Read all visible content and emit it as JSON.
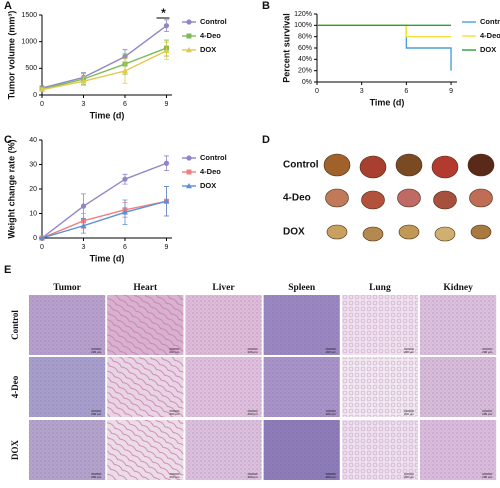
{
  "chart_data": [
    {
      "type": "line",
      "x_label": "Time (d)",
      "y_label": "Tumor volume (mm³)",
      "annotation": "*",
      "x": [
        0,
        3,
        6,
        9
      ],
      "xlim": [
        0,
        9.4
      ],
      "xticks": [
        0,
        3,
        6,
        9
      ],
      "ylim": [
        0,
        1500
      ],
      "yticks": [
        0,
        500,
        1000,
        1500
      ],
      "series": [
        {
          "name": "Control",
          "color": "#8e86c9",
          "marker": "circle",
          "values": [
            130,
            330,
            720,
            1300
          ],
          "errors": [
            40,
            90,
            130,
            110
          ]
        },
        {
          "name": "4-Deo",
          "color": "#7dbb5a",
          "marker": "square",
          "values": [
            110,
            300,
            580,
            880
          ],
          "errors": [
            30,
            100,
            190,
            150
          ]
        },
        {
          "name": "DOX",
          "color": "#e3c84a",
          "marker": "triangle",
          "values": [
            100,
            260,
            450,
            830
          ],
          "errors": [
            30,
            80,
            230,
            160
          ]
        }
      ]
    },
    {
      "type": "line",
      "x_label": "Time (d)",
      "y_label": "Percent survival",
      "xlim": [
        0,
        9.4
      ],
      "xticks": [
        0,
        3,
        6,
        9
      ],
      "ylim": [
        0,
        120
      ],
      "yticks": [
        {
          "value": 0,
          "label": "0%"
        },
        {
          "value": 20,
          "label": "20%"
        },
        {
          "value": 40,
          "label": "40%"
        },
        {
          "value": 60,
          "label": "60%"
        },
        {
          "value": 80,
          "label": "80%"
        },
        {
          "value": 100,
          "label": "100%"
        },
        {
          "value": 120,
          "label": "120%"
        }
      ],
      "series": [
        {
          "name": "Control",
          "color": "#4a9fd8",
          "x": [
            0,
            6,
            6,
            9,
            9
          ],
          "values": [
            100,
            100,
            60,
            60,
            20
          ]
        },
        {
          "name": "4-Deo",
          "color": "#f2e23a",
          "x": [
            0,
            6,
            6,
            9
          ],
          "values": [
            100,
            100,
            80,
            80
          ]
        },
        {
          "name": "DOX",
          "color": "#2e9e3a",
          "x": [
            0,
            9
          ],
          "values": [
            100,
            100
          ]
        }
      ]
    },
    {
      "type": "line",
      "x_label": "Time (d)",
      "y_label": "Weight change rate (%)",
      "x": [
        0,
        3,
        6,
        9
      ],
      "xlim": [
        0,
        9.4
      ],
      "xticks": [
        0,
        3,
        6,
        9
      ],
      "ylim": [
        0,
        40
      ],
      "yticks": [
        0,
        10,
        20,
        30,
        40
      ],
      "series": [
        {
          "name": "Control",
          "color": "#8e86c9",
          "marker": "circle",
          "values": [
            0,
            13,
            24,
            30.5
          ],
          "errors": [
            0,
            5,
            2,
            3
          ]
        },
        {
          "name": "4-Deo",
          "color": "#f08080",
          "marker": "square",
          "values": [
            0,
            7,
            11.5,
            15
          ],
          "errors": [
            0,
            3,
            3,
            6
          ]
        },
        {
          "name": "DOX",
          "color": "#5b8fd6",
          "marker": "triangle",
          "values": [
            0,
            5,
            10.5,
            15
          ],
          "errors": [
            0,
            3,
            5,
            6
          ]
        }
      ]
    }
  ],
  "panel_labels": [
    "A",
    "B",
    "C",
    "D",
    "E"
  ],
  "tumor_photos": {
    "rows": [
      "Control",
      "4-Deo",
      "DOX"
    ]
  },
  "histology": {
    "columns": [
      "Tumor",
      "Heart",
      "Liver",
      "Spleen",
      "Lung",
      "Kidney"
    ],
    "rows": [
      "Control",
      "4-Deo",
      "DOX"
    ],
    "scale_bar": "200 μm"
  }
}
